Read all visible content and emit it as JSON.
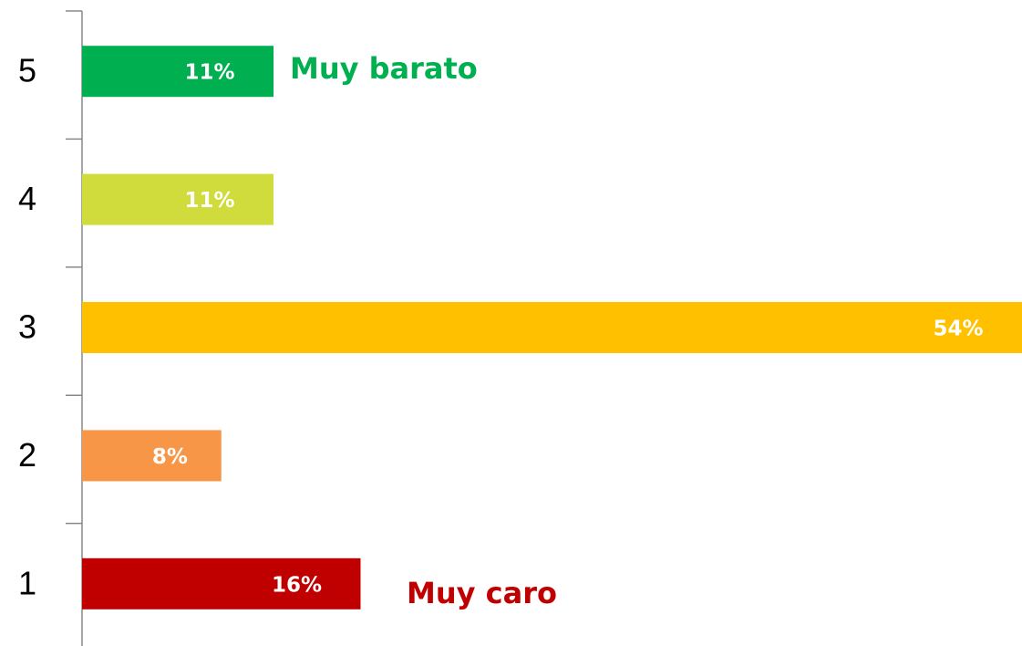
{
  "chart_data": {
    "type": "hbar",
    "categories": [
      "1",
      "2",
      "3",
      "4",
      "5"
    ],
    "values": [
      16,
      8,
      54,
      11,
      11
    ],
    "value_labels": [
      "16%",
      "8%",
      "54%",
      "11%",
      "11%"
    ],
    "colors": [
      "#c00000",
      "#f79646",
      "#ffc000",
      "#cfdc3c",
      "#00b050"
    ],
    "annotations": [
      {
        "text": "Muy barato",
        "color": "#00b050"
      },
      {
        "text": "Muy caro",
        "color": "#c00000"
      }
    ]
  }
}
